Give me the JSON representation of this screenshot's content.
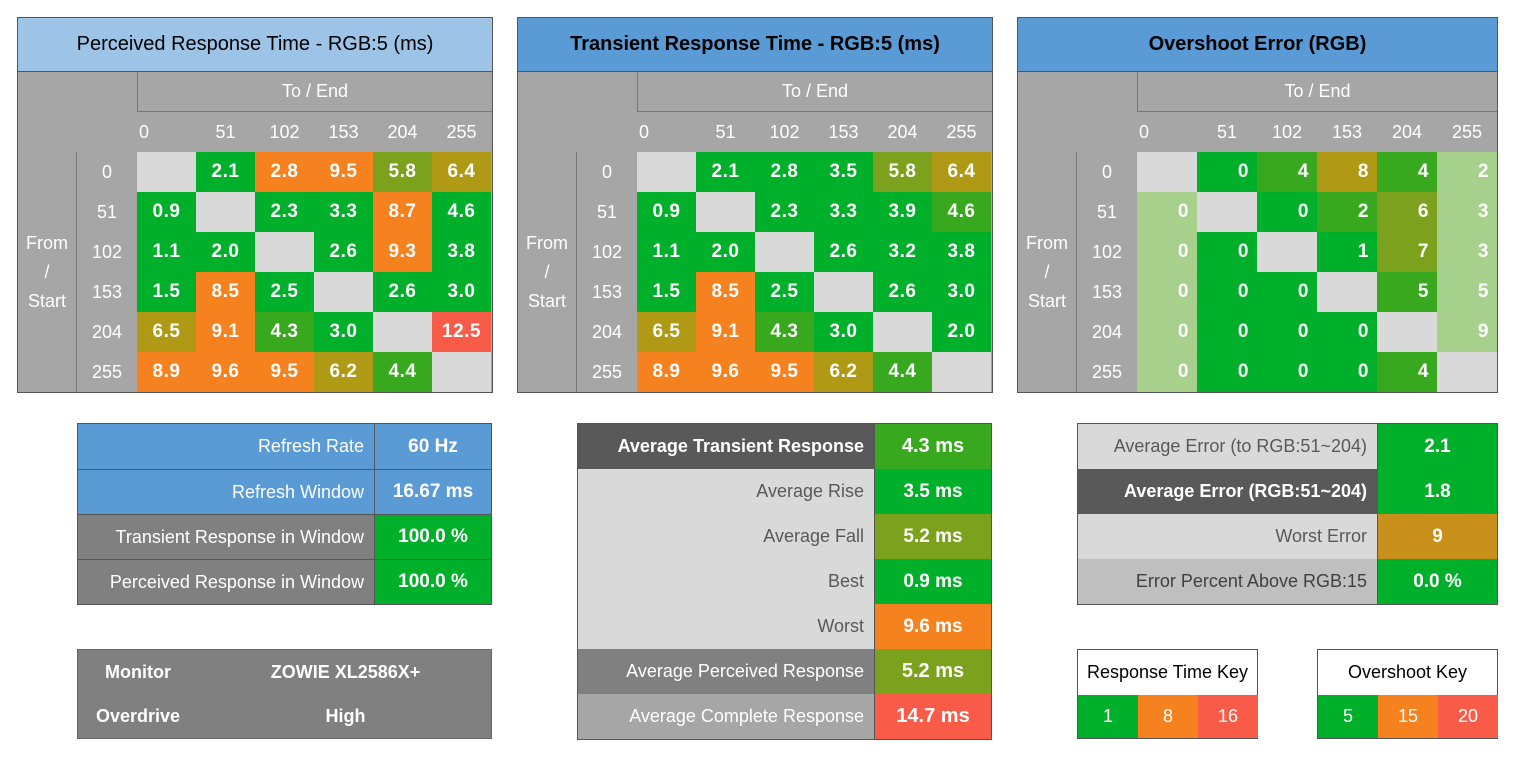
{
  "colors": {
    "green": "#00b02a",
    "green_mid": "#38a81e",
    "olive": "#7ca11c",
    "olive_dark": "#b09a15",
    "orange": "#f5821f",
    "red": "#f85c48",
    "light_green": "#a8d08d",
    "diagonal": "#d9d9d9"
  },
  "matrix_labels": {
    "to_end": "To / End",
    "from_line1": "From",
    "from_line2": "/",
    "from_line3": "Start",
    "levels": [
      "0",
      "51",
      "102",
      "153",
      "204",
      "255"
    ]
  },
  "chart_data": [
    {
      "type": "heatmap",
      "title": "Perceived Response Time - RGB:5 (ms)",
      "xlabel": "To / End",
      "ylabel": "From / Start",
      "x": [
        "0",
        "51",
        "102",
        "153",
        "204",
        "255"
      ],
      "y": [
        "0",
        "51",
        "102",
        "153",
        "204",
        "255"
      ],
      "values": [
        [
          null,
          "2.1",
          "2.8",
          "9.5",
          "5.8",
          "6.4"
        ],
        [
          "0.9",
          null,
          "2.3",
          "3.3",
          "8.7",
          "4.6"
        ],
        [
          "1.1",
          "2.0",
          null,
          "2.6",
          "9.3",
          "3.8"
        ],
        [
          "1.5",
          "8.5",
          "2.5",
          null,
          "2.6",
          "3.0"
        ],
        [
          "6.5",
          "9.1",
          "4.3",
          "3.0",
          null,
          "12.5"
        ],
        [
          "8.9",
          "9.6",
          "9.5",
          "6.2",
          "4.4",
          null
        ]
      ]
    },
    {
      "type": "heatmap",
      "title": "Transient Response Time - RGB:5 (ms)",
      "xlabel": "To / End",
      "ylabel": "From / Start",
      "x": [
        "0",
        "51",
        "102",
        "153",
        "204",
        "255"
      ],
      "y": [
        "0",
        "51",
        "102",
        "153",
        "204",
        "255"
      ],
      "values": [
        [
          null,
          "2.1",
          "2.8",
          "3.5",
          "5.8",
          "6.4"
        ],
        [
          "0.9",
          null,
          "2.3",
          "3.3",
          "3.9",
          "4.6"
        ],
        [
          "1.1",
          "2.0",
          null,
          "2.6",
          "3.2",
          "3.8"
        ],
        [
          "1.5",
          "8.5",
          "2.5",
          null,
          "2.6",
          "3.0"
        ],
        [
          "6.5",
          "9.1",
          "4.3",
          "3.0",
          null,
          "2.0"
        ],
        [
          "8.9",
          "9.6",
          "9.5",
          "6.2",
          "4.4",
          null
        ]
      ]
    },
    {
      "type": "heatmap",
      "title": "Overshoot Error (RGB)",
      "xlabel": "To / End",
      "ylabel": "From / Start",
      "x": [
        "0",
        "51",
        "102",
        "153",
        "204",
        "255"
      ],
      "y": [
        "0",
        "51",
        "102",
        "153",
        "204",
        "255"
      ],
      "values": [
        [
          null,
          "0",
          "4",
          "8",
          "4",
          "2"
        ],
        [
          "0",
          null,
          "0",
          "2",
          "6",
          "3"
        ],
        [
          "0",
          "0",
          null,
          "1",
          "7",
          "3"
        ],
        [
          "0",
          "0",
          "0",
          null,
          "5",
          "5"
        ],
        [
          "0",
          "0",
          "0",
          "0",
          null,
          "9"
        ],
        [
          "0",
          "0",
          "0",
          "0",
          "4",
          null
        ]
      ]
    }
  ],
  "refresh_table": [
    {
      "label": "Refresh Rate",
      "value": "60 Hz"
    },
    {
      "label": "Refresh Window",
      "value": "16.67 ms"
    },
    {
      "label": "Transient Response in Window",
      "value": "100.0 %"
    },
    {
      "label": "Perceived Response in Window",
      "value": "100.0 %"
    }
  ],
  "monitor_info": {
    "monitor_label": "Monitor",
    "monitor_value": "ZOWIE XL2586X+",
    "overdrive_label": "Overdrive",
    "overdrive_value": "High"
  },
  "response_stats": [
    {
      "label": "Average Transient Response",
      "value": "4.3 ms"
    },
    {
      "label": "Average Rise",
      "value": "3.5 ms"
    },
    {
      "label": "Average Fall",
      "value": "5.2 ms"
    },
    {
      "label": "Best",
      "value": "0.9 ms"
    },
    {
      "label": "Worst",
      "value": "9.6 ms"
    },
    {
      "label": "Average Perceived Response",
      "value": "5.2 ms"
    },
    {
      "label": "Average Complete Response",
      "value": "14.7 ms"
    }
  ],
  "error_stats": [
    {
      "label": "Average Error (to RGB:51~204)",
      "value": "2.1"
    },
    {
      "label": "Average Error (RGB:51~204)",
      "value": "1.8"
    },
    {
      "label": "Worst Error",
      "value": "9"
    },
    {
      "label": "Error Percent Above RGB:15",
      "value": "0.0 %"
    }
  ],
  "response_key": {
    "title": "Response Time Key",
    "values": [
      "1",
      "8",
      "16"
    ]
  },
  "overshoot_key": {
    "title": "Overshoot Key",
    "values": [
      "5",
      "15",
      "20"
    ]
  }
}
